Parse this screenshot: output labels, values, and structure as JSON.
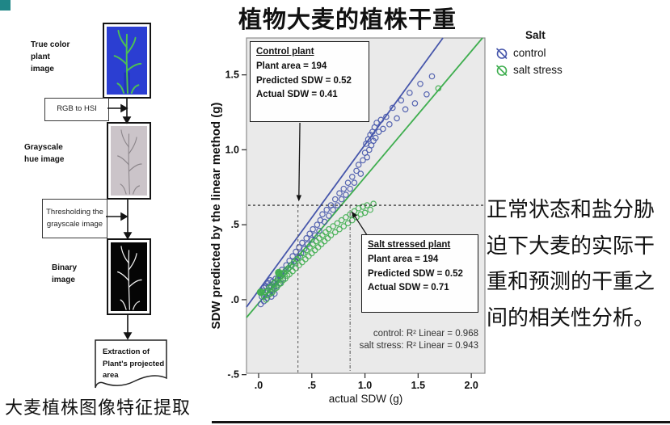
{
  "page": {
    "title": "植物大麦的植株干重",
    "caption_left": "大麦植株图像特征提取",
    "side_note": "正常状态和盐分胁\n迫下大麦的实际干\n重和预测的干重之\n间的相关性分析。",
    "accent_color": "#1f8687"
  },
  "flowchart": {
    "label_true_color": "True color\nplant\nimage",
    "box_rgb_hsi": "RGB to HSI",
    "label_grayscale": "Grayscale\nhue image",
    "box_threshold": "Thresholding the\ngrayscale image",
    "label_binary": "Binary\nimage",
    "doc_extraction": "Extraction of\nPlant's projected\narea"
  },
  "chart_data": {
    "type": "scatter",
    "title": "",
    "xlabel": "actual SDW (g)",
    "ylabel": "SDW predicted by the linear method (g)",
    "xlim": [
      -0.114,
      2.128
    ],
    "ylim": [
      -0.491,
      1.746
    ],
    "plot_bg": "#eaeaea",
    "frame_color": "#8c8c8c",
    "grid": false,
    "x_tick_values": [
      0,
      0.5,
      1.0,
      1.5,
      2.0
    ],
    "x_tick_labels": [
      ".0",
      ".5",
      "1.0",
      "1.5",
      "2.0"
    ],
    "y_tick_values": [
      -0.5,
      0,
      0.5,
      1.0,
      1.5
    ],
    "y_tick_labels": [
      "-.5",
      ".0",
      ".5",
      "1.0",
      "1.5"
    ],
    "series": [
      {
        "name": "control",
        "color": "#4656ab",
        "fit_line": [
          [
            -0.114,
            -0.049
          ],
          [
            1.733,
            1.746
          ]
        ],
        "points": [
          [
            0.02,
            -0.03
          ],
          [
            0.03,
            0.02
          ],
          [
            0.04,
            0.06
          ],
          [
            0.05,
            -0.01
          ],
          [
            0.05,
            0.08
          ],
          [
            0.06,
            0.03
          ],
          [
            0.07,
            0.09
          ],
          [
            0.08,
            0.01
          ],
          [
            0.08,
            0.06
          ],
          [
            0.09,
            0.11
          ],
          [
            0.1,
            0.04
          ],
          [
            0.1,
            0.09
          ],
          [
            0.11,
            0.06
          ],
          [
            0.11,
            0.13
          ],
          [
            0.12,
            0.02
          ],
          [
            0.12,
            0.09
          ],
          [
            0.13,
            0.06
          ],
          [
            0.13,
            0.12
          ],
          [
            0.14,
            0.08
          ],
          [
            0.15,
            0.04
          ],
          [
            0.15,
            0.11
          ],
          [
            0.16,
            0.14
          ],
          [
            0.17,
            0.09
          ],
          [
            0.18,
            0.13
          ],
          [
            0.19,
            0.17
          ],
          [
            0.2,
            0.11
          ],
          [
            0.21,
            0.16
          ],
          [
            0.22,
            0.2
          ],
          [
            0.23,
            0.14
          ],
          [
            0.25,
            0.19
          ],
          [
            0.26,
            0.23
          ],
          [
            0.28,
            0.21
          ],
          [
            0.29,
            0.26
          ],
          [
            0.31,
            0.23
          ],
          [
            0.32,
            0.29
          ],
          [
            0.34,
            0.26
          ],
          [
            0.35,
            0.32
          ],
          [
            0.37,
            0.28
          ],
          [
            0.38,
            0.35
          ],
          [
            0.4,
            0.31
          ],
          [
            0.41,
            0.38
          ],
          [
            0.43,
            0.34
          ],
          [
            0.45,
            0.41
          ],
          [
            0.46,
            0.37
          ],
          [
            0.48,
            0.44
          ],
          [
            0.5,
            0.4
          ],
          [
            0.51,
            0.47
          ],
          [
            0.53,
            0.43
          ],
          [
            0.55,
            0.5
          ],
          [
            0.57,
            0.46
          ],
          [
            0.58,
            0.53
          ],
          [
            0.6,
            0.57
          ],
          [
            0.62,
            0.52
          ],
          [
            0.64,
            0.6
          ],
          [
            0.66,
            0.56
          ],
          [
            0.68,
            0.63
          ],
          [
            0.7,
            0.6
          ],
          [
            0.72,
            0.67
          ],
          [
            0.74,
            0.63
          ],
          [
            0.76,
            0.71
          ],
          [
            0.78,
            0.67
          ],
          [
            0.8,
            0.74
          ],
          [
            0.82,
            0.7
          ],
          [
            0.84,
            0.78
          ],
          [
            0.86,
            0.74
          ],
          [
            0.88,
            0.82
          ],
          [
            0.9,
            0.78
          ],
          [
            0.92,
            0.86
          ],
          [
            0.94,
            0.9
          ],
          [
            0.96,
            0.84
          ],
          [
            0.98,
            0.93
          ],
          [
            1.0,
            0.98
          ],
          [
            1.01,
            1.04
          ],
          [
            1.02,
            0.95
          ],
          [
            1.03,
            1.07
          ],
          [
            1.04,
            1.0
          ],
          [
            1.05,
            1.1
          ],
          [
            1.06,
            1.03
          ],
          [
            1.07,
            1.12
          ],
          [
            1.08,
            1.06
          ],
          [
            1.09,
            1.15
          ],
          [
            1.1,
            1.08
          ],
          [
            1.11,
            1.18
          ],
          [
            1.13,
            1.12
          ],
          [
            1.15,
            1.2
          ],
          [
            1.17,
            1.14
          ],
          [
            1.2,
            1.22
          ],
          [
            1.23,
            1.17
          ],
          [
            1.26,
            1.28
          ],
          [
            1.3,
            1.21
          ],
          [
            1.34,
            1.33
          ],
          [
            1.38,
            1.27
          ],
          [
            1.42,
            1.38
          ],
          [
            1.47,
            1.31
          ],
          [
            1.52,
            1.44
          ],
          [
            1.58,
            1.37
          ],
          [
            1.63,
            1.49
          ]
        ]
      },
      {
        "name": "salt stress",
        "color": "#3fae4f",
        "fit_line": [
          [
            -0.114,
            -0.119
          ],
          [
            2.105,
            1.746
          ]
        ],
        "filled_points": [
          [
            0.02,
            0.05
          ],
          [
            0.19,
            0.18
          ]
        ],
        "points": [
          [
            0.05,
            0.02
          ],
          [
            0.06,
            0.05
          ],
          [
            0.07,
            0.0
          ],
          [
            0.08,
            0.06
          ],
          [
            0.09,
            0.03
          ],
          [
            0.1,
            0.08
          ],
          [
            0.11,
            0.04
          ],
          [
            0.12,
            0.09
          ],
          [
            0.13,
            0.05
          ],
          [
            0.14,
            0.11
          ],
          [
            0.15,
            0.07
          ],
          [
            0.16,
            0.12
          ],
          [
            0.17,
            0.08
          ],
          [
            0.18,
            0.14
          ],
          [
            0.19,
            0.1
          ],
          [
            0.2,
            0.15
          ],
          [
            0.21,
            0.11
          ],
          [
            0.22,
            0.17
          ],
          [
            0.23,
            0.13
          ],
          [
            0.24,
            0.18
          ],
          [
            0.25,
            0.14
          ],
          [
            0.26,
            0.2
          ],
          [
            0.27,
            0.16
          ],
          [
            0.28,
            0.21
          ],
          [
            0.29,
            0.17
          ],
          [
            0.3,
            0.23
          ],
          [
            0.32,
            0.19
          ],
          [
            0.33,
            0.25
          ],
          [
            0.35,
            0.21
          ],
          [
            0.36,
            0.27
          ],
          [
            0.38,
            0.23
          ],
          [
            0.39,
            0.29
          ],
          [
            0.41,
            0.25
          ],
          [
            0.42,
            0.31
          ],
          [
            0.44,
            0.27
          ],
          [
            0.45,
            0.33
          ],
          [
            0.47,
            0.29
          ],
          [
            0.48,
            0.35
          ],
          [
            0.5,
            0.31
          ],
          [
            0.51,
            0.37
          ],
          [
            0.53,
            0.33
          ],
          [
            0.54,
            0.39
          ],
          [
            0.56,
            0.35
          ],
          [
            0.57,
            0.41
          ],
          [
            0.59,
            0.37
          ],
          [
            0.6,
            0.43
          ],
          [
            0.62,
            0.39
          ],
          [
            0.63,
            0.45
          ],
          [
            0.65,
            0.41
          ],
          [
            0.66,
            0.47
          ],
          [
            0.68,
            0.43
          ],
          [
            0.7,
            0.49
          ],
          [
            0.72,
            0.45
          ],
          [
            0.74,
            0.51
          ],
          [
            0.76,
            0.47
          ],
          [
            0.78,
            0.53
          ],
          [
            0.8,
            0.49
          ],
          [
            0.82,
            0.55
          ],
          [
            0.84,
            0.51
          ],
          [
            0.86,
            0.57
          ],
          [
            0.88,
            0.53
          ],
          [
            0.9,
            0.59
          ],
          [
            0.92,
            0.55
          ],
          [
            0.94,
            0.61
          ],
          [
            0.96,
            0.57
          ],
          [
            0.98,
            0.62
          ],
          [
            1.0,
            0.58
          ],
          [
            1.02,
            0.63
          ],
          [
            1.05,
            0.6
          ],
          [
            1.08,
            0.64
          ],
          [
            1.69,
            1.41
          ]
        ]
      }
    ],
    "reference_lines": {
      "horizontal_y": 0.63,
      "vertical_x1": 0.37,
      "vertical_x2": 0.86
    },
    "annotations": {
      "control_box": {
        "title": "Control plant",
        "lines": [
          "Plant area = 194",
          "Predicted SDW = 0.52",
          "Actual SDW = 0.41"
        ]
      },
      "salt_box": {
        "title": "Salt stressed plant",
        "lines": [
          "Plant area = 194",
          "Predicted SDW = 0.52",
          "Actual SDW = 0.71"
        ]
      },
      "r2_control": "control: R² Linear = 0.968",
      "r2_salt": "salt stress: R² Linear = 0.943",
      "arrows": [
        {
          "from": [
            0.388,
            1.18
          ],
          "to": [
            0.378,
            0.655
          ]
        },
        {
          "from": [
            1.049,
            0.398
          ],
          "to": [
            0.874,
            0.59
          ]
        }
      ]
    },
    "legend": {
      "title": "Salt",
      "position": "right-top",
      "entries": [
        {
          "label": "control",
          "color": "#4656ab"
        },
        {
          "label": "salt stress",
          "color": "#3fae4f"
        }
      ]
    }
  }
}
